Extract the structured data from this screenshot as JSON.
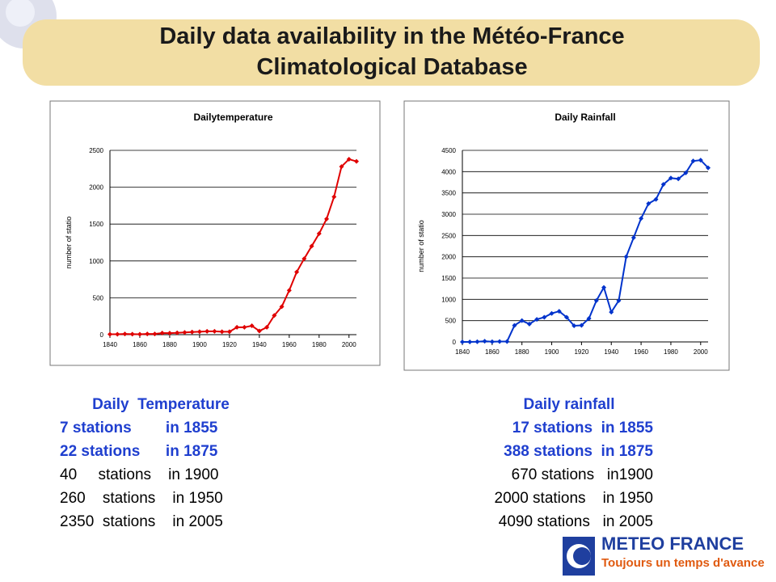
{
  "title": "Daily data availability in the Météo-France Climatological Database",
  "chart_data": [
    {
      "type": "line",
      "title": "Dailytemperature",
      "y_label": "number of statio",
      "x": [
        1840,
        1845,
        1850,
        1855,
        1860,
        1865,
        1870,
        1875,
        1880,
        1885,
        1890,
        1895,
        1900,
        1905,
        1910,
        1915,
        1920,
        1925,
        1930,
        1935,
        1940,
        1945,
        1950,
        1955,
        1960,
        1965,
        1970,
        1975,
        1980,
        1985,
        1990,
        1995,
        2000,
        2005
      ],
      "series": [
        {
          "name": "Daily temperature",
          "color": "#e00000",
          "values": [
            5,
            5,
            10,
            7,
            5,
            10,
            10,
            22,
            20,
            25,
            30,
            35,
            40,
            45,
            45,
            40,
            40,
            100,
            100,
            120,
            50,
            100,
            260,
            380,
            600,
            850,
            1030,
            1200,
            1370,
            1570,
            1870,
            2280,
            2380,
            2350
          ]
        }
      ],
      "xlim": [
        1840,
        2005
      ],
      "xticks": [
        1840,
        1860,
        1880,
        1900,
        1920,
        1940,
        1960,
        1980,
        2000
      ],
      "ylim": [
        0,
        2500
      ],
      "yticks": [
        0,
        500,
        1000,
        1500,
        2000,
        2500
      ],
      "grid": true
    },
    {
      "type": "line",
      "title": "Daily Rainfall",
      "y_label": "number of statio",
      "x": [
        1840,
        1845,
        1850,
        1855,
        1860,
        1865,
        1870,
        1875,
        1880,
        1885,
        1890,
        1895,
        1900,
        1905,
        1910,
        1915,
        1920,
        1925,
        1930,
        1935,
        1940,
        1945,
        1950,
        1955,
        1960,
        1965,
        1970,
        1975,
        1980,
        1985,
        1990,
        1995,
        2000,
        2005
      ],
      "series": [
        {
          "name": "Daily rainfall",
          "color": "#0033cc",
          "values": [
            0,
            0,
            5,
            17,
            5,
            10,
            10,
            388,
            500,
            420,
            530,
            580,
            670,
            720,
            580,
            380,
            390,
            550,
            970,
            1280,
            700,
            970,
            2000,
            2450,
            2900,
            3250,
            3350,
            3700,
            3850,
            3830,
            3970,
            4250,
            4270,
            4090
          ]
        }
      ],
      "xlim": [
        1840,
        2005
      ],
      "xticks": [
        1840,
        1860,
        1880,
        1900,
        1920,
        1940,
        1960,
        1980,
        2000
      ],
      "ylim": [
        0,
        4500
      ],
      "yticks": [
        0,
        500,
        1000,
        1500,
        2000,
        2500,
        3000,
        3500,
        4000,
        4500
      ],
      "grid": true
    }
  ],
  "captions": [
    {
      "heading": "Daily  Temperature",
      "lines": [
        "7 stations        in 1855",
        "22 stations      in 1875",
        "40     stations    in 1900",
        "260    stations    in 1950",
        "2350  stations    in 2005"
      ]
    },
    {
      "heading": "Daily rainfall",
      "lines": [
        "17 stations  in 1855",
        "388 stations  in 1875",
        "670 stations   in1900",
        "2000 stations    in 1950",
        "4090 stations   in 2005"
      ]
    }
  ],
  "logo": {
    "name": "METEO FRANCE",
    "tagline": "Toujours un temps d'avance"
  }
}
